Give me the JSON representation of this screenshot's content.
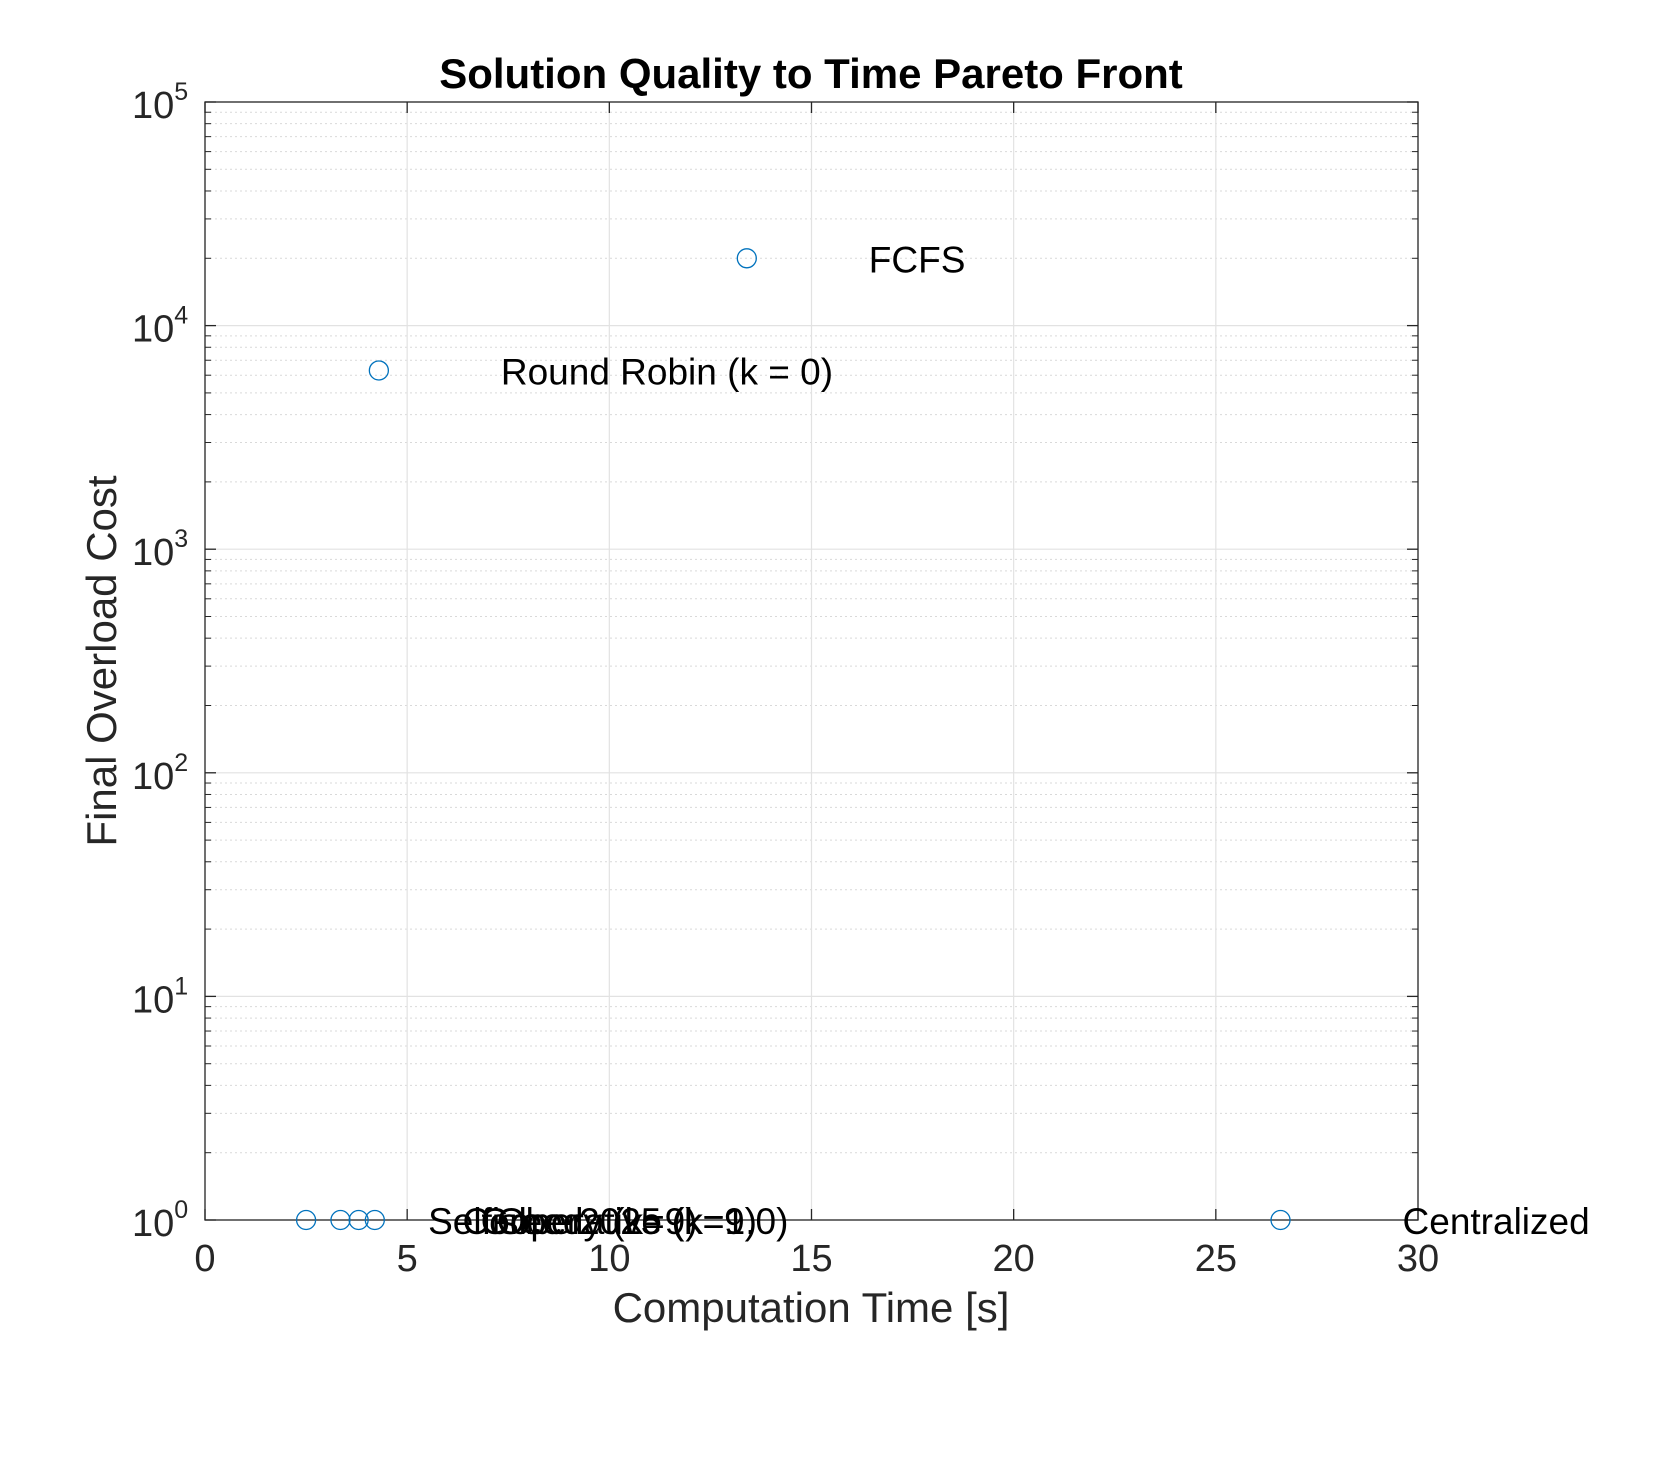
{
  "chart_data": {
    "type": "scatter",
    "title": "Solution Quality to Time Pareto Front",
    "xlabel": "Computation Time [s]",
    "ylabel": "Final Overload Cost",
    "xlim": [
      0,
      30
    ],
    "ylim": [
      1,
      100000
    ],
    "yscale": "log",
    "grid": true,
    "minor_grid_y": true,
    "marker": "circle-open",
    "marker_color": "#0072BD",
    "x_ticks": [
      "0",
      "5",
      "10",
      "15",
      "20",
      "25",
      "30"
    ],
    "y_ticks": [
      {
        "base": "10",
        "exp": "0"
      },
      {
        "base": "10",
        "exp": "1"
      },
      {
        "base": "10",
        "exp": "2"
      },
      {
        "base": "10",
        "exp": "3"
      },
      {
        "base": "10",
        "exp": "4"
      },
      {
        "base": "10",
        "exp": "5"
      }
    ],
    "points": [
      {
        "x": 13.4,
        "y": 20000,
        "label": "FCFS"
      },
      {
        "x": 4.3,
        "y": 6300,
        "label": "Round Robin (k = 0)"
      },
      {
        "x": 2.5,
        "y": 1,
        "label": "Selfish"
      },
      {
        "x": 3.35,
        "y": 1,
        "label": "Cooperative (k=1.0)"
      },
      {
        "x": 3.8,
        "y": 1,
        "label": "Greedy (k=9)"
      },
      {
        "x": 4.2,
        "y": 1,
        "label": "Ober2025 (k=9)"
      },
      {
        "x": 26.6,
        "y": 1,
        "label": "Centralized"
      }
    ]
  }
}
